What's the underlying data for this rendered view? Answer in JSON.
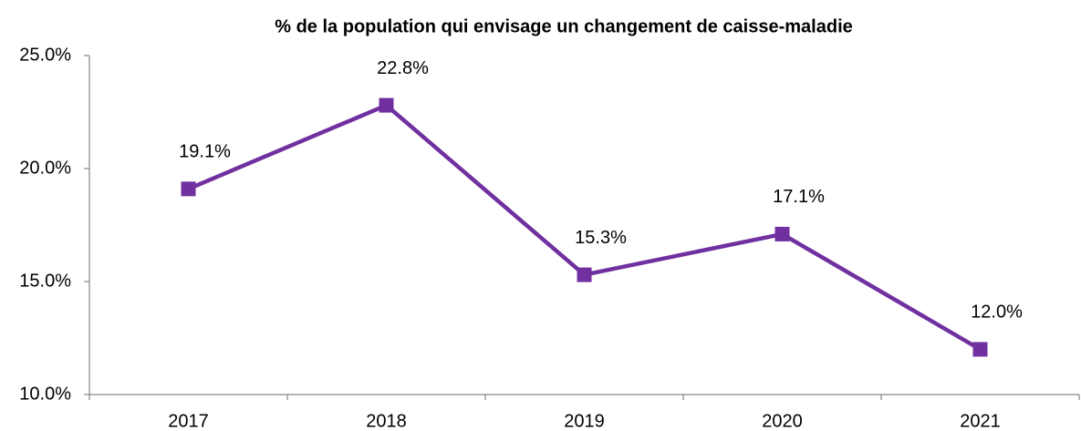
{
  "chart_data": {
    "type": "line",
    "title": "% de la population qui envisage un changement de caisse-maladie",
    "categories": [
      "2017",
      "2018",
      "2019",
      "2020",
      "2021"
    ],
    "series": [
      {
        "name": "% de la population",
        "color": "#7030a0",
        "values": [
          19.1,
          22.8,
          15.3,
          17.1,
          12.0
        ],
        "value_labels": [
          "19.1%",
          "22.8%",
          "15.3%",
          "17.1%",
          "12.0%"
        ]
      }
    ],
    "ylim": [
      10,
      25
    ],
    "yticks": [
      {
        "value": 10,
        "label": "10.0%"
      },
      {
        "value": 15,
        "label": "15.0%"
      },
      {
        "value": 20,
        "label": "20.0%"
      },
      {
        "value": 25,
        "label": "25.0%"
      }
    ],
    "grid": false
  }
}
